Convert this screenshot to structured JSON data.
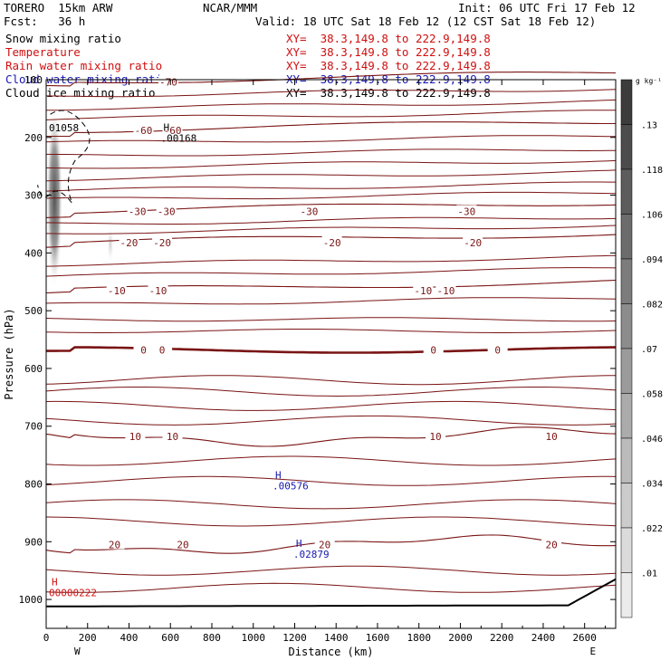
{
  "header": {
    "model": "TORERO  15km ARW",
    "org": "NCAR/MMM",
    "init": "Init: 06 UTC Fri 17 Feb 12",
    "fcst": "Fcst:   36 h",
    "valid": "Valid: 18 UTC Sat 18 Feb 12 (12 CST Sat 18 Feb 12)"
  },
  "legend": [
    {
      "label": "Snow mixing ratio",
      "xy": "XY=  38.3,149.8 to 222.9,149.8",
      "color": "#000000",
      "xy_color": "#d01010"
    },
    {
      "label": "Temperature",
      "xy": "XY=  38.3,149.8 to 222.9,149.8",
      "color": "#d01010",
      "xy_color": "#d01010"
    },
    {
      "label": "Rain water mixing ratio",
      "xy": "XY=  38.3,149.8 to 222.9,149.8",
      "color": "#d01010",
      "xy_color": "#d01010"
    },
    {
      "label": "Cloud water mixing ratio",
      "xy": "XY=  38.3,149.8 to 222.9,149.8",
      "color": "#1818b0",
      "xy_color": "#1818b0"
    },
    {
      "label": "Cloud ice mixing ratio",
      "xy": "XY=  38.3,149.8 to 222.9,149.8",
      "color": "#000000",
      "xy_color": "#000000"
    }
  ],
  "chart_data": {
    "type": "cross-section contour",
    "xlabel": "Distance (km)",
    "ylabel": "Pressure (hPa)",
    "xlim": [
      0,
      2750
    ],
    "ylim": [
      1050,
      100
    ],
    "x_ticks": [
      0,
      200,
      400,
      600,
      800,
      1000,
      1200,
      1400,
      1600,
      1800,
      2000,
      2200,
      2400,
      2600
    ],
    "y_ticks": [
      1000,
      900,
      800,
      700,
      600,
      500,
      400,
      300,
      200,
      100
    ],
    "x_end_labels": [
      "W",
      "E"
    ],
    "temperature_contours": [
      {
        "level": -70,
        "base_p": 104,
        "labels": [
          {
            "x": 590,
            "text": "-70"
          }
        ]
      },
      {
        "level": -60,
        "base_p": 188,
        "labels": [
          {
            "x": 470,
            "text": "-60"
          },
          {
            "x": 610,
            "text": "-60"
          }
        ]
      },
      {
        "level": -30,
        "base_p": 328,
        "labels": [
          {
            "x": 440,
            "text": "-30"
          },
          {
            "x": 580,
            "text": "-30"
          },
          {
            "x": 1270,
            "text": "-30"
          },
          {
            "x": 2030,
            "text": "-30"
          }
        ]
      },
      {
        "level": -20,
        "base_p": 382,
        "labels": [
          {
            "x": 400,
            "text": "-20"
          },
          {
            "x": 560,
            "text": "-20"
          },
          {
            "x": 1380,
            "text": "-20"
          },
          {
            "x": 2060,
            "text": "-20"
          }
        ]
      },
      {
        "level": -10,
        "base_p": 465,
        "labels": [
          {
            "x": 340,
            "text": "-10"
          },
          {
            "x": 540,
            "text": "-10"
          },
          {
            "x": 1820,
            "text": "-10"
          },
          {
            "x": 1930,
            "text": "-10"
          }
        ]
      },
      {
        "level": 0,
        "base_p": 568,
        "labels": [
          {
            "x": 470,
            "text": "0"
          },
          {
            "x": 560,
            "text": "0"
          },
          {
            "x": 1870,
            "text": "0"
          },
          {
            "x": 2180,
            "text": "0"
          }
        ]
      },
      {
        "level": 10,
        "base_p": 718,
        "labels": [
          {
            "x": 430,
            "text": "10"
          },
          {
            "x": 610,
            "text": "10"
          },
          {
            "x": 1880,
            "text": "10"
          },
          {
            "x": 2440,
            "text": "10"
          }
        ]
      },
      {
        "level": 20,
        "base_p": 905,
        "labels": [
          {
            "x": 330,
            "text": "20"
          },
          {
            "x": 660,
            "text": "20"
          },
          {
            "x": 1345,
            "text": "20"
          },
          {
            "x": 2440,
            "text": "20"
          }
        ]
      }
    ],
    "maxima": [
      {
        "label": "H",
        "value": ".00168",
        "x": 540,
        "p": 198,
        "color": "#000000"
      },
      {
        "label": "H",
        "value": ".00576",
        "x": 1080,
        "p": 800,
        "color": "#1818b0"
      },
      {
        "label": "H",
        "value": ".02879",
        "x": 1180,
        "p": 918,
        "color": "#1818b0"
      },
      {
        "label": "H",
        "value": "00000222",
        "x": 0,
        "p": 985,
        "color": "#d01010"
      },
      {
        "label": "",
        "value": "01058",
        "x": 0,
        "p": 180,
        "color": "#000000"
      }
    ],
    "colorbar": {
      "unit": "g kg⁻¹",
      "ticks": [
        ".13",
        ".118",
        ".106",
        ".094",
        ".082",
        ".07",
        ".058",
        ".046",
        ".034",
        ".022",
        ".01"
      ]
    }
  }
}
